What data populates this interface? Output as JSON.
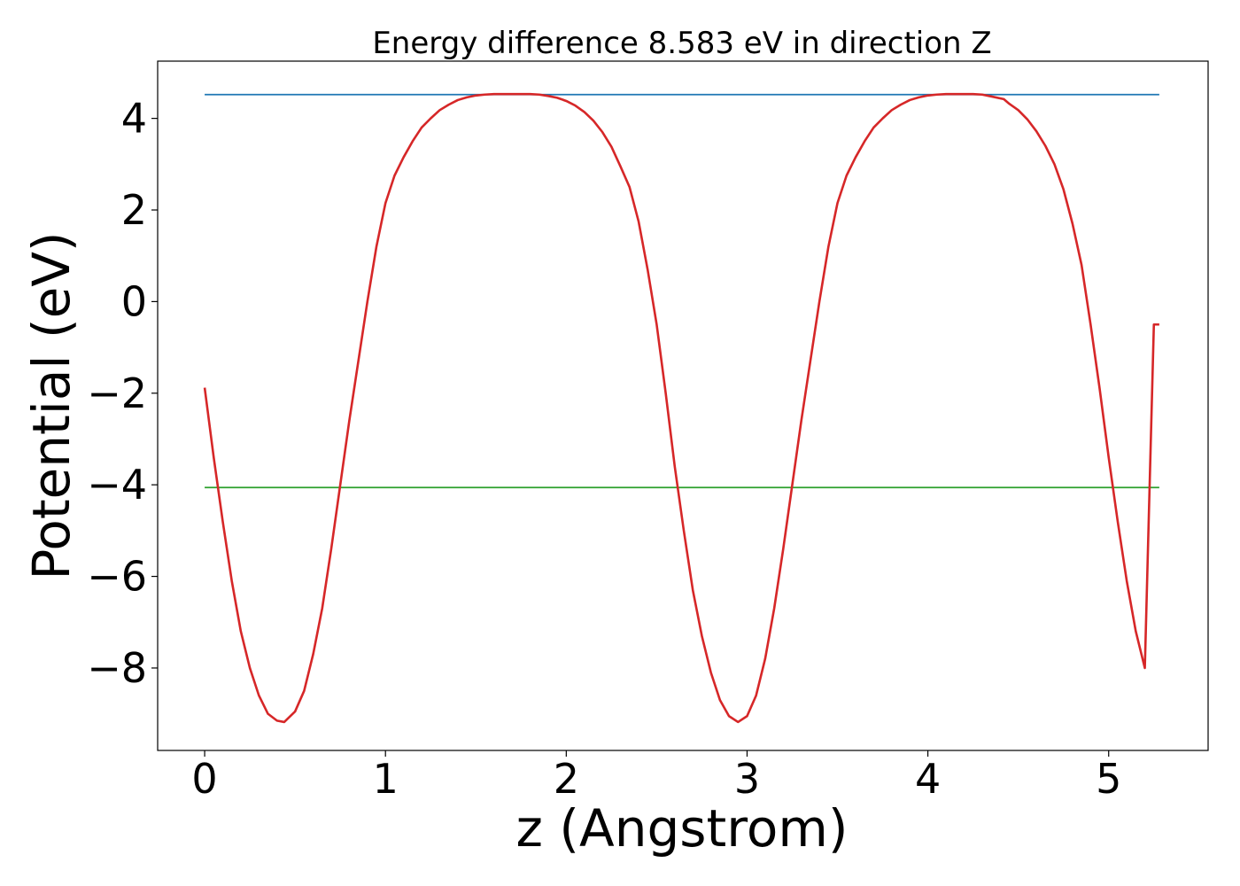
{
  "chart_data": {
    "type": "line",
    "title": "Energy difference 8.583 eV in direction Z",
    "xlabel": "z (Angstrom)",
    "ylabel": "Potential (eV)",
    "xlim": [
      -0.26,
      5.55
    ],
    "ylim": [
      -9.8,
      5.25
    ],
    "xticks": [
      0,
      1,
      2,
      3,
      4,
      5
    ],
    "xtick_labels": [
      "0",
      "1",
      "2",
      "3",
      "4",
      "5"
    ],
    "yticks": [
      -8,
      -6,
      -4,
      -2,
      0,
      2,
      4
    ],
    "ytick_labels": [
      "−8",
      "−6",
      "−4",
      "−2",
      "0",
      "2",
      "4"
    ],
    "grid": false,
    "series": [
      {
        "color": "#1f77b4",
        "x": [
          0,
          5.28
        ],
        "y": [
          4.52,
          4.52
        ]
      },
      {
        "color": "#2ca02c",
        "x": [
          0,
          5.28
        ],
        "y": [
          -4.06,
          -4.06
        ]
      },
      {
        "color": "#d62728",
        "x": [
          0,
          0.05,
          0.1,
          0.15,
          0.2,
          0.25,
          0.3,
          0.35,
          0.4,
          0.44,
          0.5,
          0.55,
          0.6,
          0.65,
          0.7,
          0.75,
          0.8,
          0.85,
          0.9,
          0.95,
          1.0,
          1.05,
          1.1,
          1.15,
          1.2,
          1.25,
          1.3,
          1.35,
          1.4,
          1.45,
          1.5,
          1.55,
          1.6,
          1.65,
          1.7,
          1.76,
          1.8,
          1.85,
          1.9,
          1.95,
          2.0,
          2.05,
          2.1,
          2.15,
          2.2,
          2.25,
          2.3,
          2.35,
          2.4,
          2.45,
          2.5,
          2.55,
          2.6,
          2.65,
          2.7,
          2.75,
          2.8,
          2.85,
          2.9,
          2.95,
          3.0,
          3.05,
          3.1,
          3.15,
          3.2,
          3.25,
          3.3,
          3.35,
          3.4,
          3.45,
          3.5,
          3.55,
          3.6,
          3.65,
          3.7,
          3.75,
          3.8,
          3.85,
          3.9,
          3.95,
          4.0,
          4.05,
          4.1,
          4.15,
          4.2,
          4.25,
          4.3,
          4.35,
          4.42,
          4.45,
          4.5,
          4.55,
          4.6,
          4.65,
          4.7,
          4.75,
          4.8,
          4.85,
          4.9,
          4.95,
          5.0,
          5.05,
          5.1,
          5.15,
          5.2,
          5.25,
          5.28
        ],
        "y": [
          -1.88,
          -3.4,
          -4.8,
          -6.1,
          -7.2,
          -8.0,
          -8.6,
          -9.0,
          -9.15,
          -9.18,
          -8.95,
          -8.5,
          -7.7,
          -6.7,
          -5.4,
          -4.0,
          -2.6,
          -1.3,
          0.0,
          1.2,
          2.15,
          2.75,
          3.15,
          3.5,
          3.8,
          4.0,
          4.18,
          4.3,
          4.4,
          4.46,
          4.5,
          4.52,
          4.53,
          4.53,
          4.53,
          4.53,
          4.53,
          4.52,
          4.49,
          4.45,
          4.38,
          4.28,
          4.14,
          3.95,
          3.7,
          3.38,
          2.95,
          2.5,
          1.75,
          0.7,
          -0.5,
          -2.0,
          -3.6,
          -5.0,
          -6.3,
          -7.3,
          -8.1,
          -8.7,
          -9.05,
          -9.18,
          -9.05,
          -8.6,
          -7.8,
          -6.7,
          -5.4,
          -4.0,
          -2.6,
          -1.3,
          0.0,
          1.2,
          2.15,
          2.75,
          3.15,
          3.5,
          3.8,
          4.0,
          4.18,
          4.3,
          4.4,
          4.46,
          4.5,
          4.52,
          4.53,
          4.53,
          4.53,
          4.53,
          4.52,
          4.48,
          4.42,
          4.32,
          4.18,
          3.98,
          3.72,
          3.4,
          3.0,
          2.45,
          1.7,
          0.8,
          -0.5,
          -1.9,
          -3.4,
          -4.8,
          -6.1,
          -7.2,
          -8.0,
          -0.5,
          -0.5
        ]
      }
    ]
  }
}
